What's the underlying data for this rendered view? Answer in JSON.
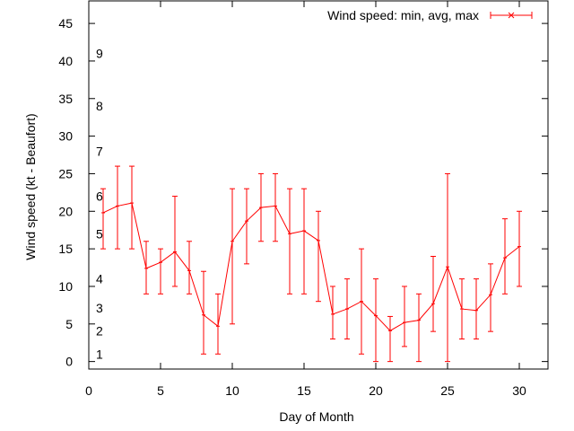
{
  "chart_data": {
    "type": "line",
    "xlabel": "Day of Month",
    "ylabel": "Wind speed (kt - Beaufort)",
    "xlim": [
      0,
      32
    ],
    "ylim": [
      -1,
      48
    ],
    "x_ticks": [
      0,
      5,
      10,
      15,
      20,
      25,
      30
    ],
    "y_ticks": [
      0,
      5,
      10,
      15,
      20,
      25,
      30,
      35,
      40,
      45
    ],
    "grid": false,
    "legend_position": "top-right",
    "series": [
      {
        "name": "Wind speed: min, avg, max",
        "color": "#ff0000",
        "points": [
          {
            "x": 1,
            "y": 19.8,
            "min": 15,
            "max": 23
          },
          {
            "x": 2,
            "y": 20.7,
            "min": 15,
            "max": 26
          },
          {
            "x": 3,
            "y": 21.1,
            "min": 15,
            "max": 26
          },
          {
            "x": 4,
            "y": 12.4,
            "min": 9,
            "max": 16
          },
          {
            "x": 5,
            "y": 13.2,
            "min": 9,
            "max": 15
          },
          {
            "x": 6,
            "y": 14.6,
            "min": 10,
            "max": 22
          },
          {
            "x": 7,
            "y": 12.1,
            "min": 9,
            "max": 16
          },
          {
            "x": 8,
            "y": 6.2,
            "min": 1,
            "max": 12
          },
          {
            "x": 9,
            "y": 4.7,
            "min": 1,
            "max": 9
          },
          {
            "x": 10,
            "y": 16.0,
            "min": 5,
            "max": 23
          },
          {
            "x": 11,
            "y": 18.7,
            "min": 13,
            "max": 23
          },
          {
            "x": 12,
            "y": 20.5,
            "min": 16,
            "max": 25
          },
          {
            "x": 13,
            "y": 20.7,
            "min": 16,
            "max": 25
          },
          {
            "x": 14,
            "y": 17.0,
            "min": 9,
            "max": 23
          },
          {
            "x": 15,
            "y": 17.4,
            "min": 9,
            "max": 23
          },
          {
            "x": 16,
            "y": 16.1,
            "min": 8,
            "max": 20
          },
          {
            "x": 17,
            "y": 6.3,
            "min": 3,
            "max": 10
          },
          {
            "x": 18,
            "y": 7.0,
            "min": 3,
            "max": 11
          },
          {
            "x": 19,
            "y": 8.0,
            "min": 1,
            "max": 15
          },
          {
            "x": 20,
            "y": 6.1,
            "min": 0,
            "max": 11
          },
          {
            "x": 21,
            "y": 4.1,
            "min": 0,
            "max": 6
          },
          {
            "x": 22,
            "y": 5.2,
            "min": 2,
            "max": 10
          },
          {
            "x": 23,
            "y": 5.5,
            "min": 0,
            "max": 9
          },
          {
            "x": 24,
            "y": 7.7,
            "min": 4,
            "max": 14
          },
          {
            "x": 25,
            "y": 12.6,
            "min": 0,
            "max": 25
          },
          {
            "x": 26,
            "y": 7.0,
            "min": 3,
            "max": 11
          },
          {
            "x": 27,
            "y": 6.8,
            "min": 3,
            "max": 11
          },
          {
            "x": 28,
            "y": 8.9,
            "min": 4,
            "max": 13
          },
          {
            "x": 29,
            "y": 13.8,
            "min": 9,
            "max": 19
          },
          {
            "x": 30,
            "y": 15.3,
            "min": 10,
            "max": 20
          }
        ]
      }
    ],
    "beaufort_labels": [
      {
        "label": "1",
        "y": 1.0
      },
      {
        "label": "2",
        "y": 4.1
      },
      {
        "label": "3",
        "y": 7.1
      },
      {
        "label": "4",
        "y": 11.0
      },
      {
        "label": "5",
        "y": 17.0
      },
      {
        "label": "6",
        "y": 22.0
      },
      {
        "label": "7",
        "y": 28.0
      },
      {
        "label": "8",
        "y": 34.0
      },
      {
        "label": "9",
        "y": 41.0
      }
    ]
  }
}
